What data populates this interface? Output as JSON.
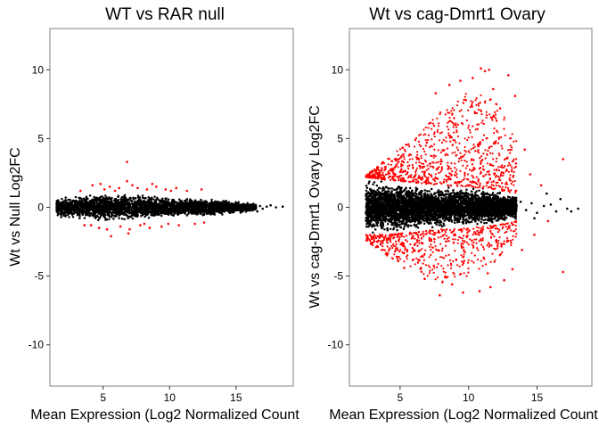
{
  "chart_data": [
    {
      "type": "scatter",
      "title": "WT vs RAR null",
      "xlabel": "Mean Expression (Log2 Normalized Count",
      "ylabel": "Wt vs Null Log2FC",
      "xlim": [
        1.0,
        19.3
      ],
      "ylim": [
        -13.0,
        13.0
      ],
      "xticks": [
        5,
        10,
        15
      ],
      "yticks": [
        -10,
        -5,
        0,
        5,
        10
      ],
      "xtick_labels": [
        "5",
        "10",
        "15"
      ],
      "ytick_labels": [
        "-10",
        "-5",
        "0",
        "5",
        "10"
      ],
      "grid": false,
      "series_colors": {
        "nonsig": "#000000",
        "sig": "#ff0000"
      },
      "density": {
        "x_range": [
          1.5,
          16.5
        ],
        "band": [
          [
            1.5,
            -0.8,
            0.8
          ],
          [
            3.0,
            -1.0,
            1.0
          ],
          [
            6.0,
            -1.1,
            1.1
          ],
          [
            9.0,
            -0.9,
            0.9
          ],
          [
            12.0,
            -0.7,
            0.7
          ],
          [
            14.5,
            -0.55,
            0.55
          ],
          [
            16.5,
            -0.3,
            0.3
          ]
        ],
        "count": 2200
      },
      "nonsig_points": [
        [
          16.8,
          0.1
        ],
        [
          17.0,
          -0.1
        ],
        [
          17.3,
          0.05
        ],
        [
          17.6,
          0.15
        ],
        [
          18.0,
          0.0
        ],
        [
          16.6,
          -0.3
        ],
        [
          18.5,
          0.05
        ]
      ],
      "sig_points": [
        [
          6.8,
          3.3
        ],
        [
          4.2,
          1.6
        ],
        [
          5.1,
          1.3
        ],
        [
          5.5,
          1.5
        ],
        [
          6.2,
          1.4
        ],
        [
          6.8,
          1.9
        ],
        [
          7.2,
          1.6
        ],
        [
          7.6,
          1.4
        ],
        [
          8.3,
          1.3
        ],
        [
          9.0,
          1.5
        ],
        [
          9.7,
          1.3
        ],
        [
          10.5,
          1.4
        ],
        [
          11.3,
          1.2
        ],
        [
          12.4,
          1.3
        ],
        [
          3.3,
          1.2
        ],
        [
          4.8,
          1.7
        ],
        [
          5.9,
          1.2
        ],
        [
          8.7,
          1.7
        ],
        [
          10.1,
          1.2
        ],
        [
          4.1,
          -1.3
        ],
        [
          5.3,
          -1.6
        ],
        [
          5.6,
          -2.1
        ],
        [
          6.3,
          -1.4
        ],
        [
          7.0,
          -1.6
        ],
        [
          7.8,
          -1.3
        ],
        [
          8.5,
          -1.5
        ],
        [
          9.4,
          -1.4
        ],
        [
          10.7,
          -1.3
        ],
        [
          11.9,
          -1.2
        ],
        [
          3.6,
          -1.3
        ],
        [
          4.7,
          -1.5
        ],
        [
          6.9,
          -1.9
        ],
        [
          8.1,
          -1.2
        ],
        [
          9.9,
          -1.2
        ],
        [
          12.6,
          -1.1
        ]
      ]
    },
    {
      "type": "scatter",
      "title": "Wt vs cag-Dmrt1 Ovary",
      "xlabel": "Mean Expression (Log2 Normalized Count",
      "ylabel": "Wt vs cag-Dmrt1 Ovary Log2FC",
      "xlim": [
        1.3,
        19.0
      ],
      "ylim": [
        -13.0,
        13.0
      ],
      "xticks": [
        5,
        10,
        15
      ],
      "yticks": [
        -10,
        -5,
        0,
        5,
        10
      ],
      "xtick_labels": [
        "5",
        "10",
        "15"
      ],
      "ytick_labels": [
        "-10",
        "-5",
        "0",
        "5",
        "10"
      ],
      "grid": false,
      "series_colors": {
        "nonsig": "#000000",
        "sig": "#ff0000"
      },
      "density": {
        "x_range": [
          2.5,
          13.5
        ],
        "band": [
          [
            2.5,
            -2.0,
            2.2
          ],
          [
            4.0,
            -2.0,
            2.0
          ],
          [
            6.0,
            -1.8,
            1.8
          ],
          [
            8.0,
            -1.6,
            1.6
          ],
          [
            10.0,
            -1.5,
            1.5
          ],
          [
            12.0,
            -1.3,
            1.3
          ],
          [
            13.5,
            -1.0,
            1.0
          ]
        ],
        "count": 3200
      },
      "sig_cloud": {
        "count": 1500,
        "x_range": [
          2.5,
          13.5
        ],
        "upper_envelope": [
          [
            2.5,
            2.3
          ],
          [
            4.0,
            3.5
          ],
          [
            6.0,
            5.0
          ],
          [
            8.0,
            7.0
          ],
          [
            10.0,
            8.5
          ],
          [
            12.0,
            8.0
          ],
          [
            13.5,
            5.0
          ]
        ],
        "lower_envelope": [
          [
            2.5,
            -2.5
          ],
          [
            4.0,
            -3.5
          ],
          [
            6.0,
            -4.5
          ],
          [
            8.0,
            -5.5
          ],
          [
            10.0,
            -5.0
          ],
          [
            12.0,
            -4.0
          ],
          [
            13.5,
            -2.5
          ]
        ]
      },
      "nonsig_points": [
        [
          13.8,
          0.4
        ],
        [
          14.2,
          -0.2
        ],
        [
          14.6,
          0.3
        ],
        [
          15.0,
          -0.4
        ],
        [
          15.5,
          0.1
        ],
        [
          16.0,
          0.2
        ],
        [
          16.4,
          -0.3
        ],
        [
          17.2,
          -0.1
        ],
        [
          18.0,
          -0.1
        ],
        [
          14.8,
          -0.8
        ],
        [
          15.7,
          1.0
        ],
        [
          16.7,
          0.6
        ],
        [
          17.5,
          -0.3
        ]
      ],
      "sig_points": [
        [
          10.9,
          10.1
        ],
        [
          11.2,
          9.9
        ],
        [
          11.5,
          10.0
        ],
        [
          12.9,
          9.6
        ],
        [
          9.4,
          9.2
        ],
        [
          8.6,
          8.9
        ],
        [
          10.3,
          9.4
        ],
        [
          11.8,
          8.6
        ],
        [
          13.4,
          8.1
        ],
        [
          7.6,
          8.3
        ],
        [
          16.9,
          3.5
        ],
        [
          16.9,
          -4.7
        ],
        [
          7.9,
          -6.4
        ],
        [
          9.6,
          -6.2
        ],
        [
          10.8,
          -6.1
        ],
        [
          11.6,
          -5.8
        ],
        [
          8.8,
          -5.6
        ],
        [
          12.6,
          -5.3
        ],
        [
          13.2,
          -4.5
        ],
        [
          6.8,
          -5.2
        ],
        [
          14.5,
          2.4
        ],
        [
          14.8,
          -2.0
        ],
        [
          15.3,
          1.6
        ],
        [
          15.8,
          -1.0
        ],
        [
          14.1,
          4.2
        ],
        [
          13.9,
          -3.1
        ],
        [
          12.3,
          7.2
        ],
        [
          9.8,
          7.8
        ],
        [
          11.4,
          -4.8
        ],
        [
          5.3,
          -4.4
        ]
      ]
    }
  ]
}
